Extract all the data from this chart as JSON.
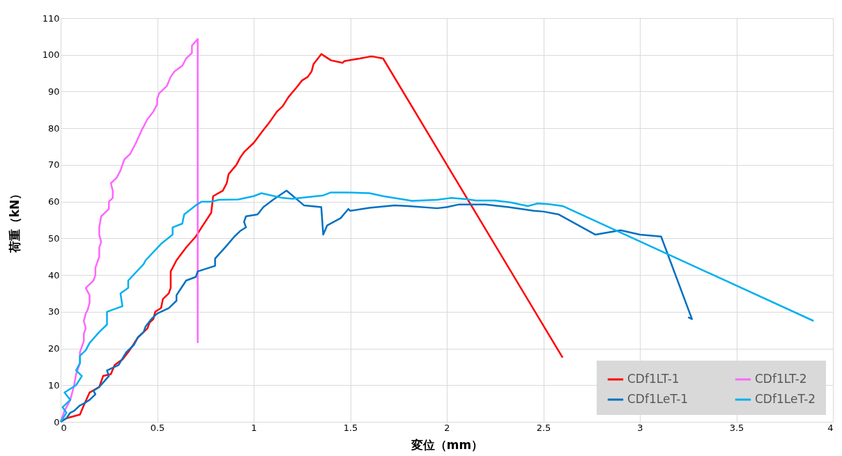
{
  "chart_data": {
    "type": "line",
    "xlabel": "変位（mm）",
    "ylabel": "荷重（kN）",
    "xlim": [
      0,
      4
    ],
    "xticks": [
      0,
      0.5,
      1,
      1.5,
      2,
      2.5,
      3,
      3.5,
      4
    ],
    "ylim": [
      0,
      110
    ],
    "yticks": [
      0,
      10,
      20,
      30,
      40,
      50,
      60,
      70,
      80,
      90,
      100,
      110
    ],
    "grid": true,
    "legend": "bottom right",
    "marker": "none",
    "line_style": "solid",
    "series": [
      {
        "name": "CDf1LT-1",
        "color": "#ff0000",
        "x": [
          0,
          0.03,
          0.1,
          0.12,
          0.15,
          0.2,
          0.22,
          0.26,
          0.28,
          0.32,
          0.35,
          0.37,
          0.4,
          0.43,
          0.45,
          0.46,
          0.48,
          0.49,
          0.52,
          0.53,
          0.56,
          0.57,
          0.57,
          0.6,
          0.65,
          0.7,
          0.73,
          0.78,
          0.79,
          0.84,
          0.86,
          0.87,
          0.91,
          0.93,
          0.95,
          1.0,
          1.05,
          1.08,
          1.1,
          1.12,
          1.15,
          1.18,
          1.22,
          1.25,
          1.28,
          1.3,
          1.31,
          1.35,
          1.4,
          1.46,
          1.47,
          1.55,
          1.6,
          1.62,
          1.67,
          2.6
        ],
        "values": [
          0,
          1,
          2,
          4.5,
          8,
          9.5,
          12.5,
          13,
          15.5,
          17,
          19,
          20.5,
          23,
          24.5,
          25.5,
          27,
          28,
          30,
          31,
          33.5,
          35,
          36.5,
          41,
          44,
          47.5,
          50.5,
          53,
          57,
          61.5,
          63,
          65,
          67.5,
          70,
          72,
          73.5,
          76,
          79.5,
          81.5,
          83,
          84.5,
          86,
          88.5,
          91,
          93,
          94,
          95.5,
          97.5,
          100.2,
          98.5,
          97.8,
          98.3,
          99,
          99.5,
          99.5,
          99,
          17.5
        ]
      },
      {
        "name": "CDf1LT-2",
        "color": "#ff66ff",
        "x": [
          0,
          0.02,
          0.05,
          0.07,
          0.08,
          0.1,
          0.1,
          0.11,
          0.12,
          0.12,
          0.13,
          0.12,
          0.13,
          0.14,
          0.15,
          0.15,
          0.13,
          0.17,
          0.18,
          0.18,
          0.19,
          0.2,
          0.2,
          0.21,
          0.2,
          0.2,
          0.21,
          0.25,
          0.25,
          0.27,
          0.27,
          0.26,
          0.29,
          0.31,
          0.32,
          0.33,
          0.36,
          0.39,
          0.42,
          0.45,
          0.48,
          0.5,
          0.5,
          0.51,
          0.55,
          0.57,
          0.59,
          0.63,
          0.65,
          0.68,
          0.68,
          0.71,
          0.71
        ],
        "values": [
          0,
          3,
          6,
          10,
          13,
          16,
          19,
          20.5,
          22,
          24,
          25.5,
          27.5,
          29.5,
          30.5,
          32.5,
          34.5,
          36.5,
          38.5,
          40,
          42,
          43.5,
          45,
          47.5,
          49,
          51,
          53,
          56,
          58,
          60,
          61,
          63,
          65,
          66.5,
          68.5,
          70,
          71.5,
          73,
          76,
          79.5,
          82.5,
          84.5,
          86.5,
          88,
          89.5,
          91.5,
          94,
          95.5,
          97,
          99,
          100.5,
          102.5,
          104.3,
          21.5
        ]
      },
      {
        "name": "CDf1LeT-1",
        "color": "#0070c0",
        "x": [
          0,
          0.03,
          0.05,
          0.07,
          0.1,
          0.12,
          0.15,
          0.18,
          0.17,
          0.2,
          0.25,
          0.24,
          0.3,
          0.34,
          0.38,
          0.4,
          0.43,
          0.44,
          0.47,
          0.5,
          0.56,
          0.6,
          0.6,
          0.65,
          0.7,
          0.71,
          0.8,
          0.8,
          0.86,
          0.9,
          0.93,
          0.96,
          0.95,
          0.96,
          1.02,
          1.05,
          1.1,
          1.17,
          1.26,
          1.35,
          1.36,
          1.38,
          1.45,
          1.49,
          1.5,
          1.6,
          1.73,
          1.8,
          1.95,
          2.0,
          2.06,
          2.2,
          2.32,
          2.45,
          2.5,
          2.58,
          2.77,
          2.9,
          3.0,
          3.11,
          3.27,
          3.25
        ],
        "values": [
          0,
          1,
          2.5,
          3,
          4.5,
          5,
          6,
          7.5,
          8.5,
          9.5,
          12.5,
          14,
          15.5,
          19,
          21,
          23,
          24.5,
          26,
          28,
          29.5,
          31,
          33,
          34.5,
          38.5,
          39.5,
          41,
          42.5,
          44.5,
          48,
          50.5,
          52,
          53,
          54.5,
          56,
          56.5,
          58.5,
          60.5,
          63,
          59,
          58.5,
          51,
          53.5,
          55.5,
          58,
          57.5,
          58.3,
          59,
          58.8,
          58.2,
          58.5,
          59.2,
          59.2,
          58.5,
          57.5,
          57.3,
          56.5,
          51,
          52.2,
          51,
          50.5,
          28,
          28.5
        ]
      },
      {
        "name": "CDf1LeT-2",
        "color": "#00b0f0",
        "x": [
          0,
          0.03,
          0.01,
          0.05,
          0.02,
          0.08,
          0.11,
          0.08,
          0.1,
          0.1,
          0.13,
          0.15,
          0.2,
          0.24,
          0.24,
          0.32,
          0.31,
          0.35,
          0.35,
          0.43,
          0.44,
          0.52,
          0.58,
          0.58,
          0.63,
          0.64,
          0.7,
          0.73,
          0.78,
          0.82,
          0.92,
          1.0,
          1.04,
          1.15,
          1.2,
          1.36,
          1.4,
          1.48,
          1.6,
          1.67,
          1.82,
          1.95,
          2.02,
          2.1,
          2.15,
          2.25,
          2.33,
          2.42,
          2.47,
          2.53,
          2.6,
          3.9
        ],
        "values": [
          0,
          2.5,
          4,
          6,
          8,
          10,
          12.5,
          14,
          16,
          18,
          19.5,
          21.5,
          24.5,
          26.5,
          30,
          31.5,
          35,
          36.5,
          38.5,
          43,
          44,
          48.5,
          51,
          53,
          54,
          56.5,
          59,
          60,
          60,
          60.5,
          60.6,
          61.5,
          62.3,
          61,
          60.8,
          61.7,
          62.5,
          62.5,
          62.3,
          61.5,
          60.2,
          60.5,
          61,
          60.7,
          60.3,
          60.3,
          59.8,
          58.8,
          59.5,
          59.3,
          58.8,
          27.5
        ]
      }
    ]
  }
}
